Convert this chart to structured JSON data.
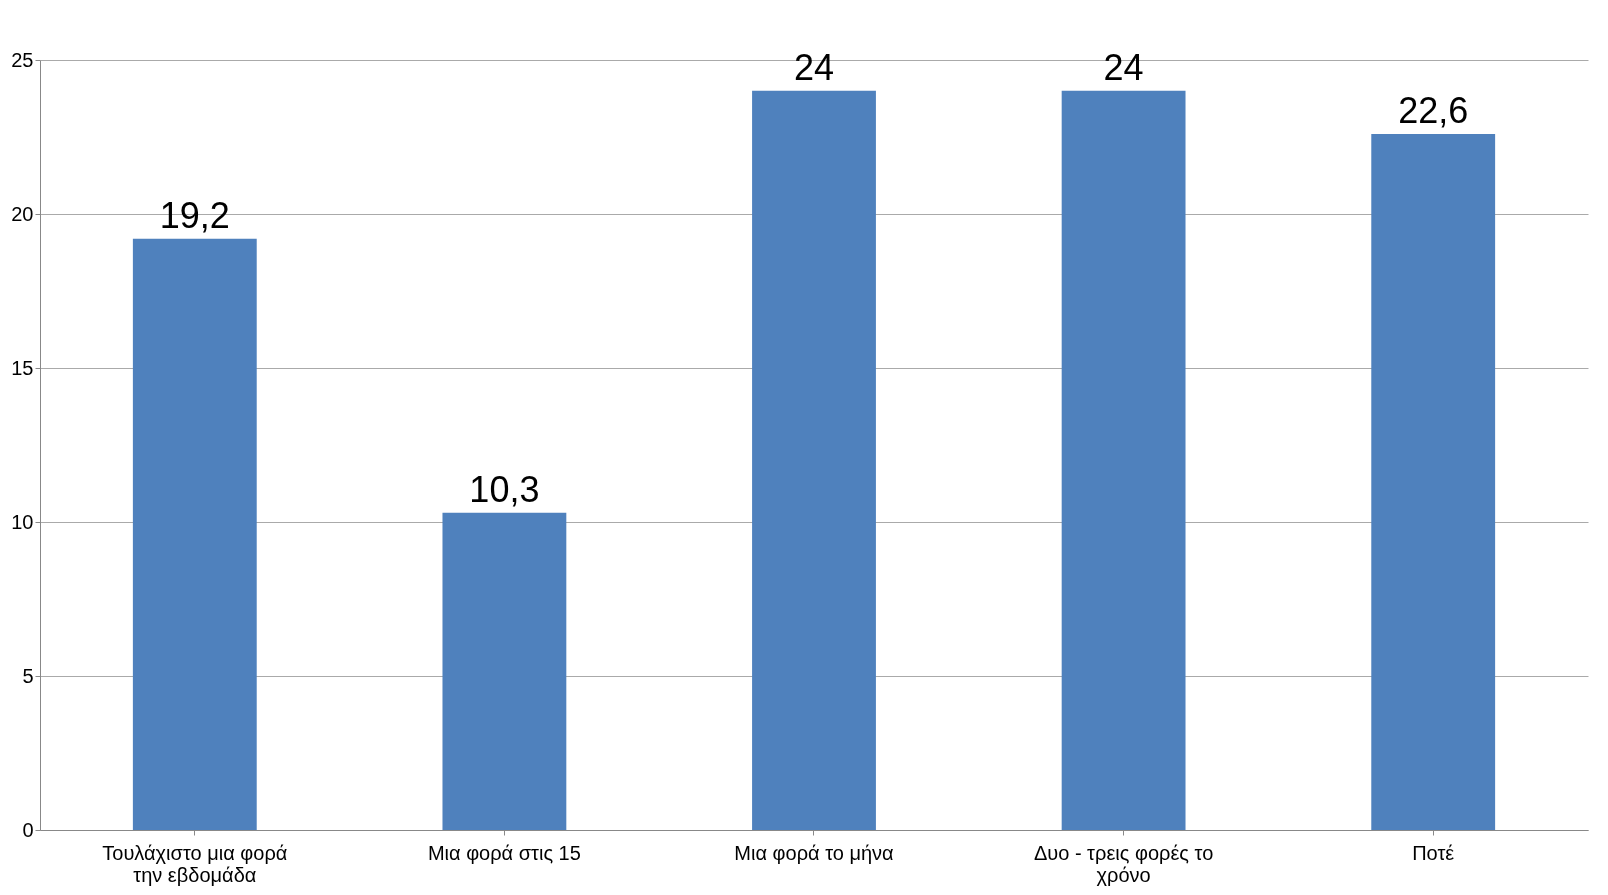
{
  "chart_data": {
    "type": "bar",
    "categories": [
      "Τουλάχιστο μια φορά την εβδομάδα",
      "Μια φορά στις 15",
      "Μια φορά το μήνα",
      "Δυο - τρεις φορές το χρόνο",
      "Ποτέ"
    ],
    "values": [
      19.2,
      10.3,
      24,
      24,
      22.6
    ],
    "value_labels": [
      "19,2",
      "10,3",
      "24",
      "24",
      "22,6"
    ],
    "color": "#4f81bd",
    "ylim": [
      0,
      25
    ],
    "yticks": [
      0,
      5,
      10,
      15,
      20,
      25
    ],
    "grid": "y"
  }
}
